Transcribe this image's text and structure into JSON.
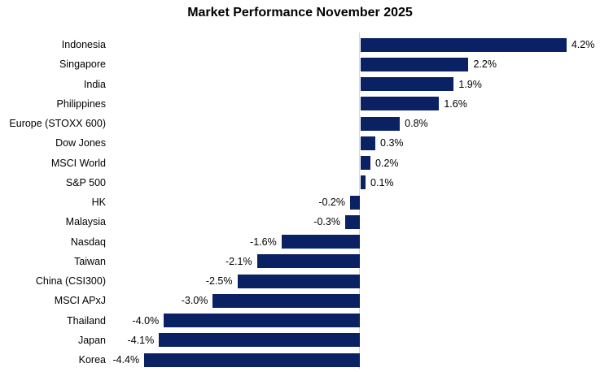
{
  "title": "Market Performance November 2025",
  "chart_data": {
    "type": "bar",
    "orientation": "horizontal",
    "title": "Market Performance November 2025",
    "xlabel": "",
    "ylabel": "",
    "categories": [
      "Indonesia",
      "Singapore",
      "India",
      "Philippines",
      "Europe (STOXX 600)",
      "Dow Jones",
      "MSCI World",
      "S&P 500",
      "HK",
      "Malaysia",
      "Nasdaq",
      "Taiwan",
      "China (CSI300)",
      "MSCI APxJ",
      "Thailand",
      "Japan",
      "Korea"
    ],
    "values": [
      4.2,
      2.2,
      1.9,
      1.6,
      0.8,
      0.3,
      0.2,
      0.1,
      -0.2,
      -0.3,
      -1.6,
      -2.1,
      -2.5,
      -3.0,
      -4.0,
      -4.1,
      -4.4
    ],
    "value_labels": [
      "4.2%",
      "2.2%",
      "1.9%",
      "1.6%",
      "0.8%",
      "0.3%",
      "0.2%",
      "0.1%",
      "-0.2%",
      "-0.3%",
      "-1.6%",
      "-2.1%",
      "-2.5%",
      "-3.0%",
      "-4.0%",
      "-4.1%",
      "-4.4%"
    ],
    "xlim": [
      -4.9,
      4.9
    ],
    "grid": false,
    "legend": false,
    "bar_color": "#0a2164",
    "axis_line_color": "#d6d6d9",
    "text_color": "#000000"
  }
}
